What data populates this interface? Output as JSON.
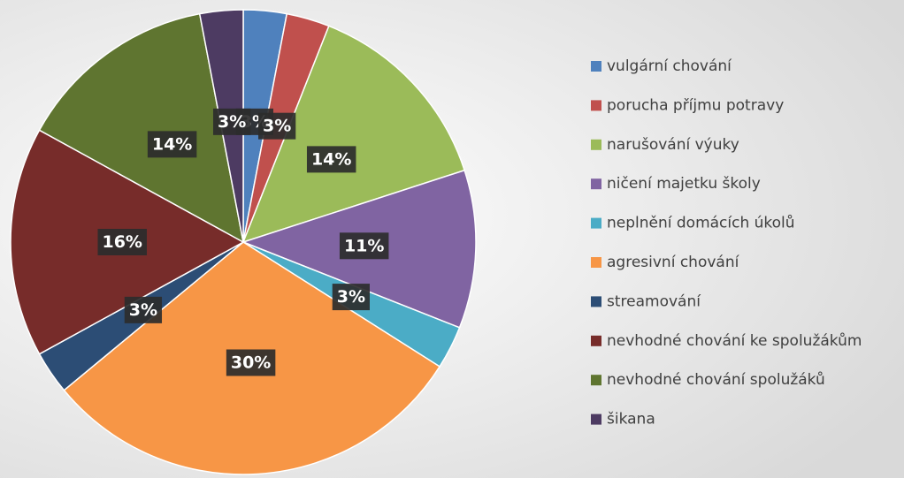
{
  "chart_data": {
    "type": "pie",
    "categories": [
      "vulgární chování",
      "porucha příjmu potravy",
      "narušování výuky",
      "ničení majetku školy",
      "neplnění domácích úkolů",
      "agresivní chování",
      "streamování",
      "nevhodné chování ke spolužákům",
      "nevhodné chování spolužáků",
      "šikana"
    ],
    "values": [
      3,
      3,
      14,
      11,
      3,
      30,
      3,
      16,
      14,
      3
    ],
    "value_labels": [
      "3%",
      "3%",
      "14%",
      "11%",
      "3%",
      "30%",
      "3%",
      "16%",
      "14%",
      "3%"
    ],
    "colors": [
      "#4f81bd",
      "#c0504d",
      "#9bbb59",
      "#8064a2",
      "#4bacc6",
      "#f79646",
      "#2c4d75",
      "#772c2a",
      "#5f7530",
      "#4d3b62"
    ],
    "legend": "right"
  }
}
